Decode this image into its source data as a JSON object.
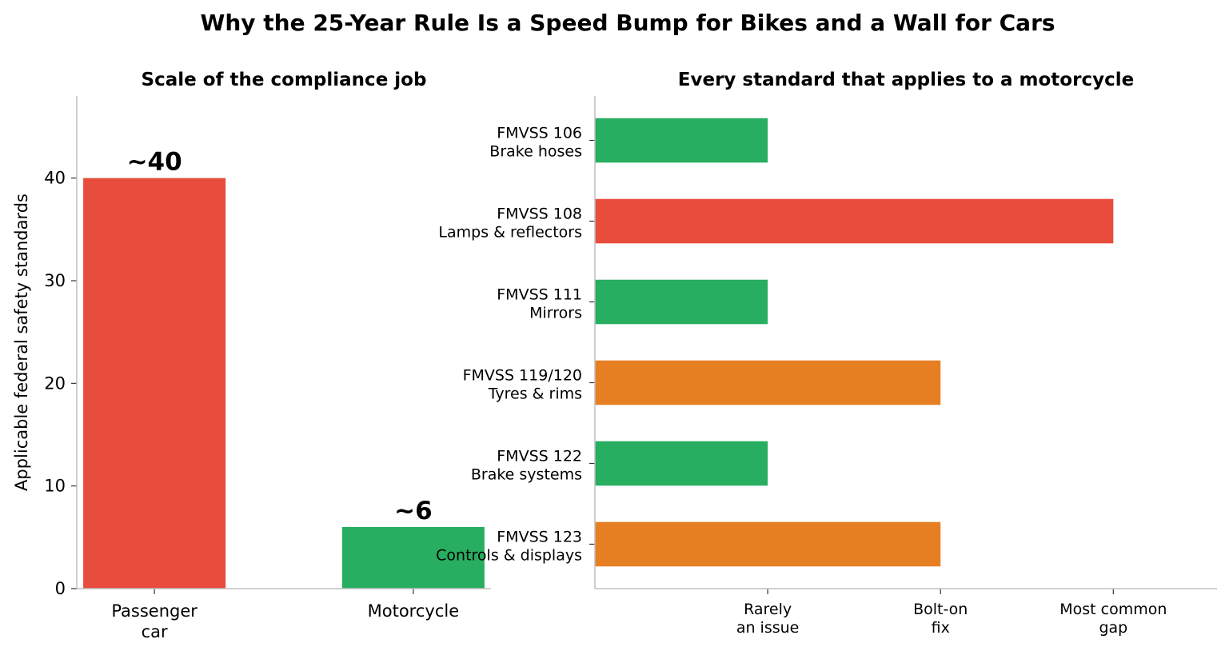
{
  "figure": {
    "suptitle": "Why the 25-Year Rule Is a Speed Bump for Bikes and a Wall for Cars"
  },
  "chart_data": [
    {
      "type": "bar",
      "title": "Scale of the compliance job",
      "ylabel": "Applicable federal safety standards",
      "xlabel": "",
      "categories": [
        "Passenger\ncar",
        "Motorcycle"
      ],
      "values": [
        40,
        6
      ],
      "data_labels": [
        "~40",
        "~6"
      ],
      "colors": [
        "#e84c3d",
        "#27ae60"
      ],
      "ylim": [
        0,
        48
      ],
      "yticks": [
        0,
        10,
        20,
        30,
        40
      ],
      "grid": false
    },
    {
      "type": "bar",
      "orientation": "horizontal",
      "title": "Every standard that applies to a motorcycle",
      "xlabel": "",
      "ylabel": "",
      "categories": [
        "FMVSS 106\nBrake hoses",
        "FMVSS 108\nLamps & reflectors",
        "FMVSS 111\nMirrors",
        "FMVSS 119/120\nTyres & rims",
        "FMVSS 122\nBrake systems",
        "FMVSS 123\nControls & displays"
      ],
      "values": [
        1,
        3,
        1,
        2,
        1,
        2
      ],
      "colors": [
        "#27ae60",
        "#e84c3d",
        "#27ae60",
        "#e67e22",
        "#27ae60",
        "#e67e22"
      ],
      "xticks": [
        1,
        2,
        3
      ],
      "xtick_labels": [
        "Rarely\nan issue",
        "Bolt-on\nfix",
        "Most common\ngap"
      ],
      "xlim": [
        0,
        3.6
      ],
      "grid": false
    }
  ]
}
